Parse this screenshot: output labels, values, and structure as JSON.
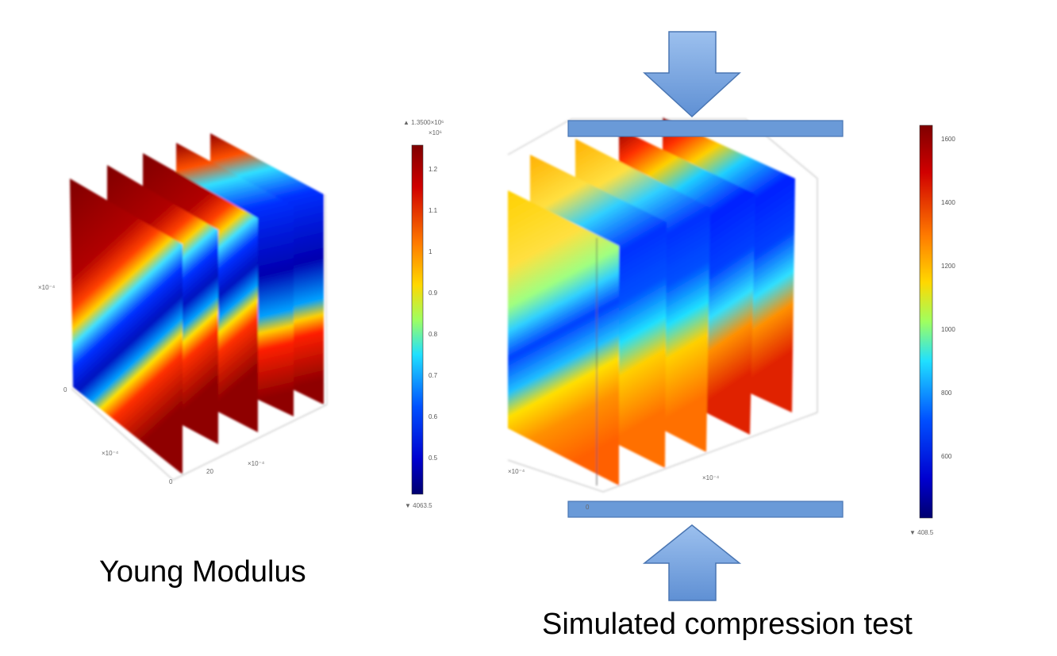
{
  "captions": {
    "left": "Young Modulus",
    "right": "Simulated compression test"
  },
  "left_colorbar": {
    "max_label": "▲ 1.3500×10⁶",
    "unit_label": "×10⁶",
    "ticks": [
      "1.2",
      "1.1",
      "1",
      "0.9",
      "0.8",
      "0.7",
      "0.6",
      "0.5"
    ],
    "min_label": "▼ 4063.5"
  },
  "right_colorbar": {
    "ticks": [
      "1600",
      "1400",
      "1200",
      "1000",
      "800",
      "600"
    ],
    "min_label": "▼ 408.5"
  },
  "left_axes": {
    "y_exp": "×10⁻⁴",
    "y_zero": "0",
    "x_exp": "×10⁻⁴",
    "z_exp": "×10⁻⁴",
    "x_zero": "0",
    "z_tick": "20"
  },
  "right_axes": {
    "x_exp": "×10⁻⁴",
    "z_exp": "×10⁻⁴",
    "bottom_tick": "0"
  },
  "colors": {
    "arrow_fill": "#6f9fdc",
    "arrow_stroke": "#4a76b3",
    "plate_fill": "#6a9ad8",
    "jet_high": "#800000",
    "jet_low": "#00008f"
  }
}
